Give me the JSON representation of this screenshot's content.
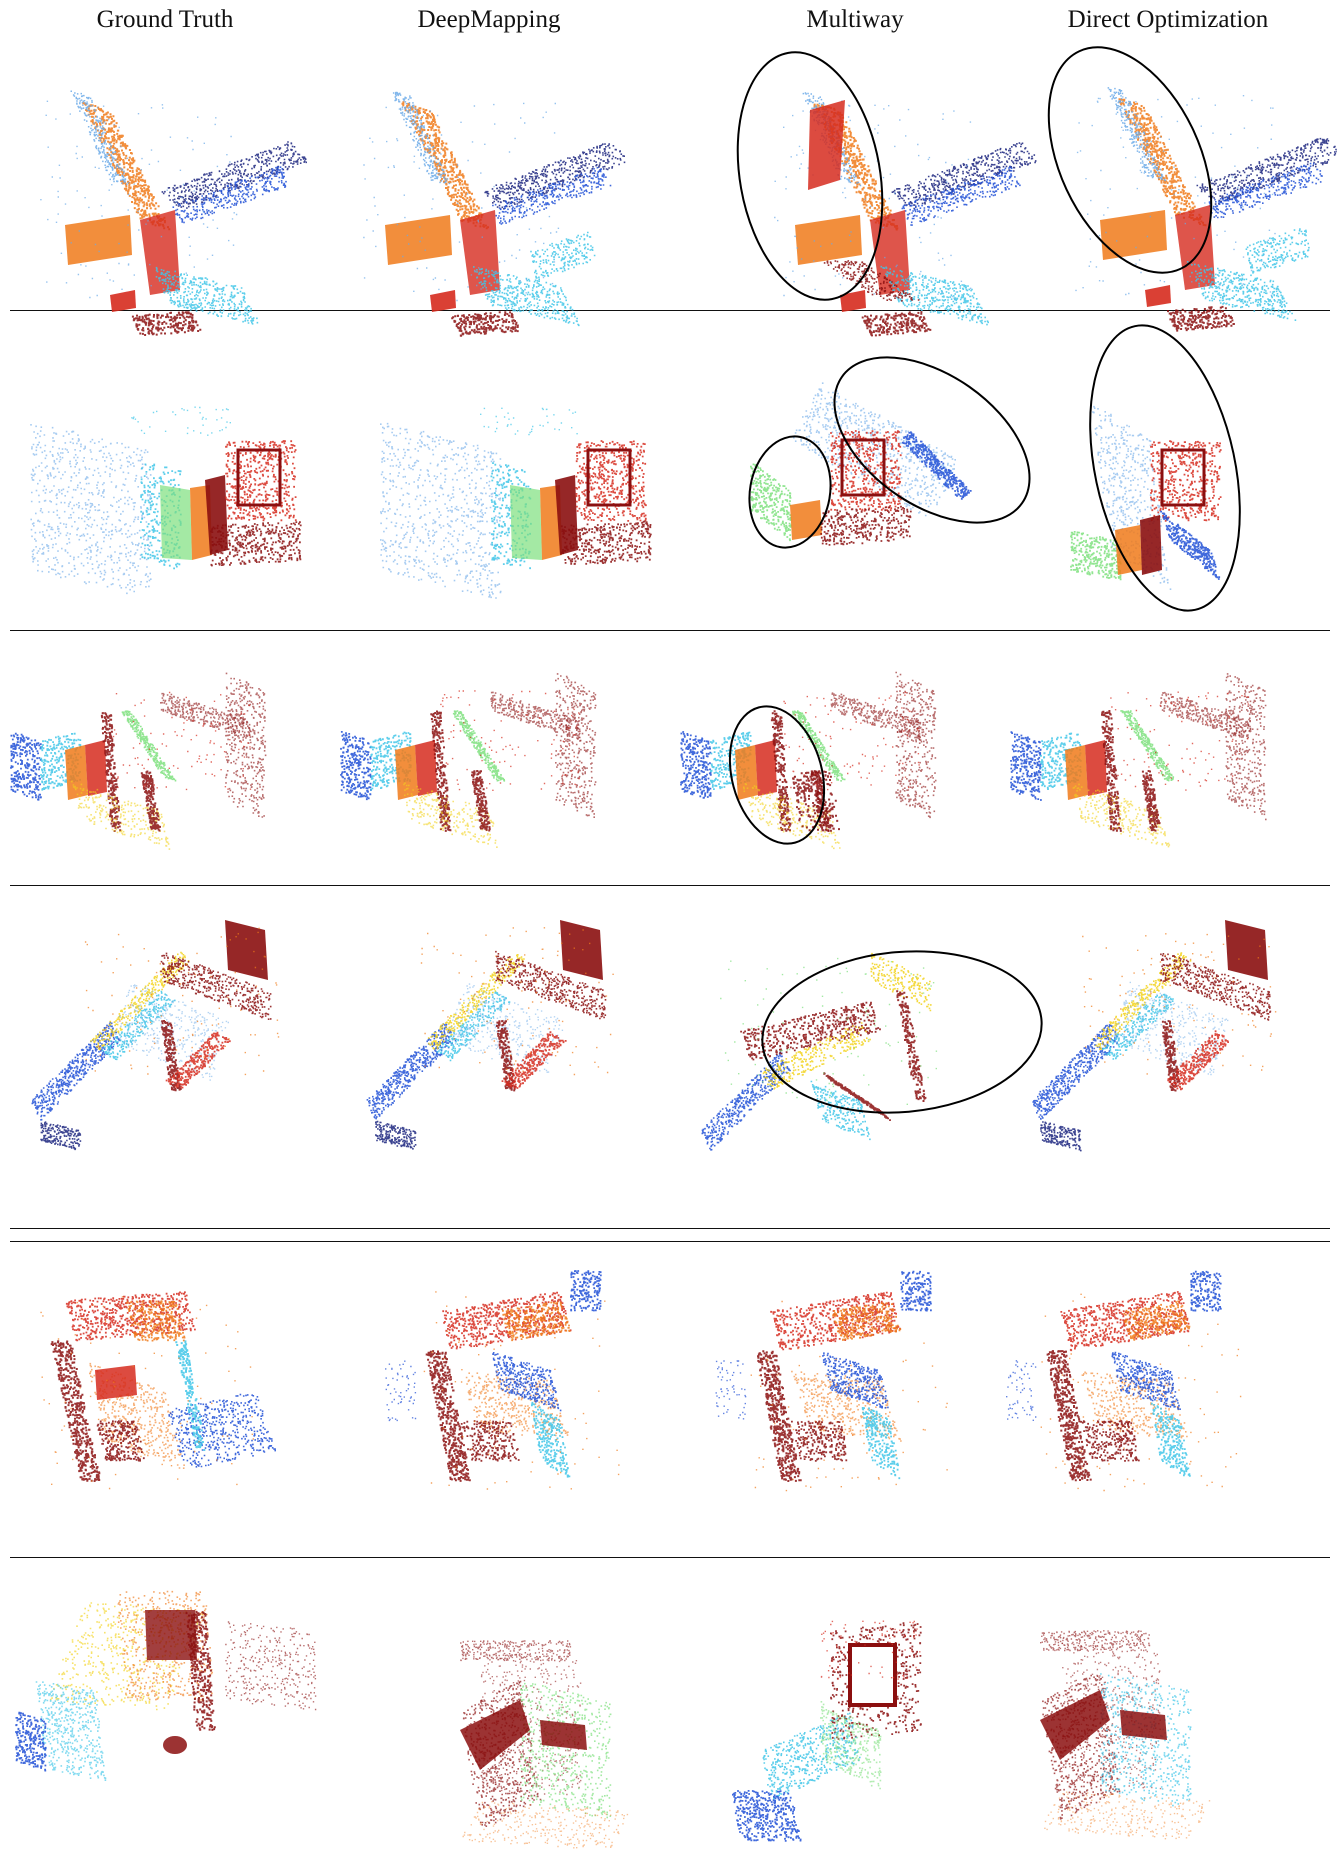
{
  "figure": {
    "column_headers": [
      "Ground Truth",
      "DeepMapping",
      "Multiway",
      "Direct Optimization"
    ],
    "palette": {
      "dark_red": "#8b0f0f",
      "red": "#d62b1e",
      "orange": "#f07a1a",
      "yellow": "#f2d21c",
      "green": "#7ee07e",
      "cyan": "#3fc6e8",
      "light_blue": "#6aa9e8",
      "blue": "#1f4fd6",
      "navy": "#1a237e",
      "annotation_ellipse": "#000000"
    },
    "row_count": 6,
    "annotated_failures": [
      {
        "row": 1,
        "columns": [
          "Multiway",
          "Direct Optimization"
        ]
      },
      {
        "row": 2,
        "columns": [
          "Multiway",
          "Direct Optimization"
        ]
      },
      {
        "row": 3,
        "columns": [
          "Multiway"
        ]
      },
      {
        "row": 4,
        "columns": [
          "Multiway"
        ]
      }
    ]
  }
}
